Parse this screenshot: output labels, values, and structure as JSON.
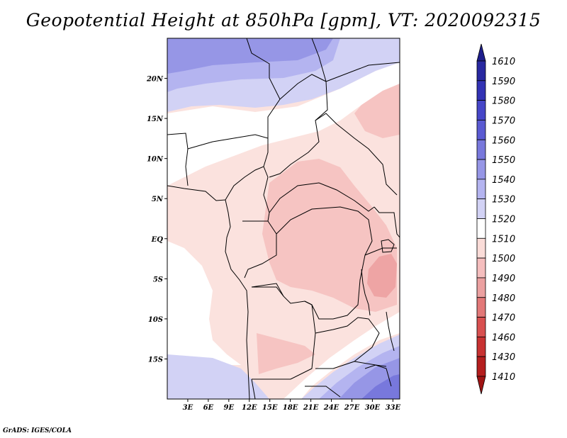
{
  "title": "Geopotential Height at 850hPa [gpm], VT: 2020092315",
  "credit": "GrADS: IGES/COLA",
  "map": {
    "lat_range": [
      -20,
      25
    ],
    "lon_range": [
      0,
      34
    ],
    "y_ticks": [
      {
        "label": "20N",
        "lat": 20
      },
      {
        "label": "15N",
        "lat": 15
      },
      {
        "label": "10N",
        "lat": 10
      },
      {
        "label": "5N",
        "lat": 5
      },
      {
        "label": "EQ",
        "lat": 0
      },
      {
        "label": "5S",
        "lat": -5
      },
      {
        "label": "10S",
        "lat": -10
      },
      {
        "label": "15S",
        "lat": -15
      }
    ],
    "x_ticks": [
      {
        "label": "3E",
        "lon": 3
      },
      {
        "label": "6E",
        "lon": 6
      },
      {
        "label": "9E",
        "lon": 9
      },
      {
        "label": "12E",
        "lon": 12
      },
      {
        "label": "15E",
        "lon": 15
      },
      {
        "label": "18E",
        "lon": 18
      },
      {
        "label": "21E",
        "lon": 21
      },
      {
        "label": "24E",
        "lon": 24
      },
      {
        "label": "27E",
        "lon": 27
      },
      {
        "label": "30E",
        "lon": 30
      },
      {
        "label": "33E",
        "lon": 33
      }
    ]
  },
  "colorbar": {
    "labels": [
      "1610",
      "1590",
      "1580",
      "1570",
      "1560",
      "1550",
      "1540",
      "1530",
      "1520",
      "1510",
      "1500",
      "1490",
      "1480",
      "1470",
      "1460",
      "1430",
      "1410"
    ],
    "colors": [
      "#1e1e8c",
      "#2828a0",
      "#3232b4",
      "#4646c8",
      "#5a5ad2",
      "#7878dc",
      "#9696e6",
      "#b4b4f0",
      "#d2d2f5",
      "#ffffff",
      "#fadcd8",
      "#f5bebe",
      "#eba0a0",
      "#e27878",
      "#d85050",
      "#c83232",
      "#b41e1e",
      "#a01414"
    ]
  },
  "field_colors": {
    "z1520": "#d2d2f5",
    "z1530": "#b4b4f0",
    "z1540": "#9696e6",
    "z1550": "#7878dc",
    "z1510": "#ffffff",
    "z1500": "#fbe2de",
    "z1490": "#f6c4c2",
    "z1480": "#eea4a4"
  }
}
